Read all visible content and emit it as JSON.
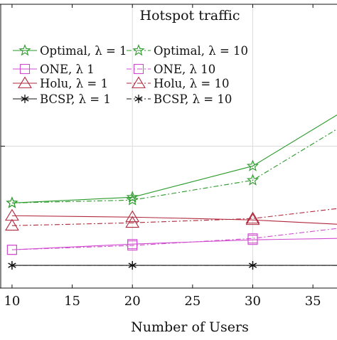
{
  "chart_data": {
    "type": "line",
    "title": "Hotspot traffic",
    "xlabel": "Number of Users",
    "ylabel": "",
    "xlim": [
      9,
      37
    ],
    "ylim": [
      0,
      10
    ],
    "x_ticks": [
      10,
      15,
      20,
      25,
      30,
      35
    ],
    "grid": true,
    "legend_position": "top-left",
    "series": [
      {
        "name": "Optimal, λ = 1",
        "color": "#2a9a2a",
        "dash": "solid",
        "marker": "star",
        "x": [
          10,
          20,
          30,
          37
        ],
        "y": [
          3.0,
          3.2,
          4.3,
          6.1
        ]
      },
      {
        "name": "Optimal, λ = 10",
        "color": "#2a9a2a",
        "dash": "dashdot",
        "marker": "star",
        "x": [
          10,
          20,
          30,
          37
        ],
        "y": [
          3.0,
          3.1,
          3.8,
          5.6
        ]
      },
      {
        "name": "ONE, λ    1",
        "color": "#d04ad0",
        "dash": "solid",
        "marker": "square",
        "x": [
          10,
          20,
          30,
          37
        ],
        "y": [
          1.35,
          1.55,
          1.7,
          1.75
        ]
      },
      {
        "name": "ONE, λ    10",
        "color": "#d04ad0",
        "dash": "dashdot",
        "marker": "square",
        "x": [
          10,
          20,
          30,
          37
        ],
        "y": [
          1.35,
          1.5,
          1.75,
          2.1
        ]
      },
      {
        "name": "Holu, λ = 1",
        "color": "#b0283c",
        "dash": "solid",
        "marker": "triangle",
        "x": [
          10,
          20,
          30,
          37
        ],
        "y": [
          2.55,
          2.5,
          2.4,
          2.25
        ]
      },
      {
        "name": "Holu, λ = 10",
        "color": "#b0283c",
        "dash": "dashdot",
        "marker": "triangle",
        "x": [
          10,
          20,
          30,
          37
        ],
        "y": [
          2.2,
          2.3,
          2.45,
          2.8
        ]
      },
      {
        "name": "BCSP, λ = 1",
        "color": "#111111",
        "dash": "solid",
        "marker": "asterisk",
        "x": [
          10,
          20,
          30,
          37
        ],
        "y": [
          0.8,
          0.8,
          0.8,
          0.8
        ]
      },
      {
        "name": "BCSP, λ = 10",
        "color": "#111111",
        "dash": "dashdot",
        "marker": "asterisk",
        "x": [
          10,
          20,
          30,
          37
        ],
        "y": [
          0.8,
          0.8,
          0.8,
          0.8
        ]
      }
    ]
  }
}
